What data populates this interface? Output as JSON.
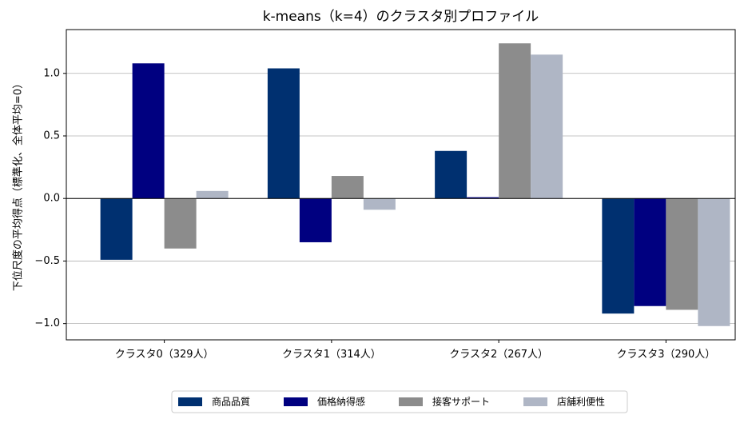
{
  "chart_data": {
    "type": "bar",
    "title": "k-means（k=4）のクラスタ別プロファイル",
    "xlabel": "",
    "ylabel": "下位尺度の平均得点（標準化、全体平均=0）",
    "categories": [
      "クラスタ0（329人）",
      "クラスタ1（314人）",
      "クラスタ2（267人）",
      "クラスタ3（290人）"
    ],
    "series": [
      {
        "name": "商品品質",
        "color": "#003070",
        "values": [
          -0.49,
          1.04,
          0.38,
          -0.92
        ]
      },
      {
        "name": "価格納得感",
        "color": "#000080",
        "values": [
          1.08,
          -0.35,
          0.01,
          -0.86
        ]
      },
      {
        "name": "接客サポート",
        "color": "#8c8c8c",
        "values": [
          -0.4,
          0.18,
          1.24,
          -0.89
        ]
      },
      {
        "name": "店舗利便性",
        "color": "#afb6c5",
        "values": [
          0.06,
          -0.09,
          1.15,
          -1.02
        ]
      }
    ],
    "ylim": [
      -1.13,
      1.35
    ],
    "yticks": [
      -1.0,
      -0.5,
      0.0,
      0.5,
      1.0
    ],
    "ytick_labels": [
      "−1.0",
      "−0.5",
      "0.0",
      "0.5",
      "1.0"
    ],
    "grid": "horizontal",
    "zero_line": true,
    "legend_position": "bottom-center"
  }
}
